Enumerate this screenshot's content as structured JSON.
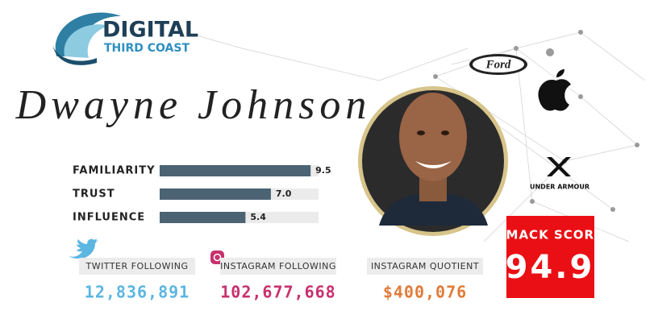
{
  "logo": {
    "line1": "DIGITAL",
    "line2": "THIRD COAST"
  },
  "name": "Dwayne Johnson",
  "brands": {
    "ford": "Ford",
    "under_armour": "UNDER ARMOUR"
  },
  "chart_data": {
    "type": "bar",
    "orientation": "horizontal",
    "categories": [
      "FAMILIARITY",
      "TRUST",
      "INFLUENCE"
    ],
    "values": [
      9.5,
      7.0,
      5.4
    ],
    "value_labels": [
      "9.5",
      "7.0",
      "5.4"
    ],
    "xlim": [
      0,
      10
    ],
    "color": "#4b6373"
  },
  "stats": [
    {
      "label": "TWITTER FOLLOWING",
      "value": "12,836,891",
      "color": "#5cb6e2"
    },
    {
      "label": "INSTAGRAM FOLLOWING",
      "value": "102,677,668",
      "color": "#c8306e"
    },
    {
      "label": "INSTAGRAM QUOTIENT",
      "value": "$400,076",
      "color": "#e07b39"
    }
  ],
  "smack_score": {
    "label": "SMACK SCORE",
    "value": "94.9"
  }
}
